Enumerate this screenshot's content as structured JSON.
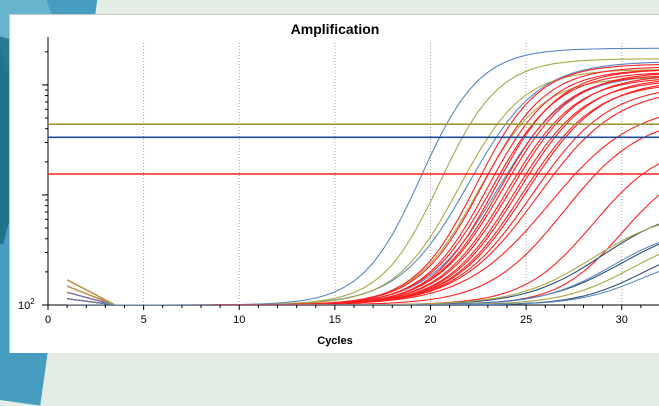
{
  "chart_data": {
    "type": "line",
    "title": "Amplification",
    "xlabel": "Cycles",
    "ylabel": "",
    "xlim": [
      0,
      32
    ],
    "x_ticks": [
      0,
      5,
      10,
      15,
      20,
      25,
      30
    ],
    "y_scale": "log",
    "y_tick_label": {
      "base": "10",
      "exp": "2",
      "value": 100
    },
    "grid": "vertical-dotted",
    "thresholds": [
      {
        "color": "#9a9a3a",
        "level": 0.69
      },
      {
        "color": "#1f4e9a",
        "level": 0.64
      },
      {
        "color": "#ff2020",
        "level": 0.5
      }
    ],
    "series": [
      {
        "color": "#5b86c6",
        "midpoint": 19.5,
        "plateau": 0.98,
        "k": 0.65
      },
      {
        "color": "#5b86c6",
        "midpoint": 22.0,
        "plateau": 0.93,
        "k": 0.55
      },
      {
        "color": "#5b86c6",
        "midpoint": 23.5,
        "plateau": 0.88,
        "k": 0.55
      },
      {
        "color": "#a8a84a",
        "midpoint": 20.5,
        "plateau": 0.94,
        "k": 0.65
      },
      {
        "color": "#a8a84a",
        "midpoint": 21.5,
        "plateau": 0.9,
        "k": 0.6
      },
      {
        "color": "#a8a84a",
        "midpoint": 22.5,
        "plateau": 0.87,
        "k": 0.6
      },
      {
        "color": "#ff2020",
        "midpoint": 22.4,
        "plateau": 0.92,
        "k": 0.62
      },
      {
        "color": "#ff2020",
        "midpoint": 22.7,
        "plateau": 0.91,
        "k": 0.6
      },
      {
        "color": "#ff2020",
        "midpoint": 23.0,
        "plateau": 0.9,
        "k": 0.6
      },
      {
        "color": "#ff2020",
        "midpoint": 23.2,
        "plateau": 0.89,
        "k": 0.58
      },
      {
        "color": "#ff2020",
        "midpoint": 23.4,
        "plateau": 0.9,
        "k": 0.6
      },
      {
        "color": "#ff2020",
        "midpoint": 23.6,
        "plateau": 0.88,
        "k": 0.58
      },
      {
        "color": "#ff2020",
        "midpoint": 23.8,
        "plateau": 0.89,
        "k": 0.56
      },
      {
        "color": "#ff2020",
        "midpoint": 24.0,
        "plateau": 0.87,
        "k": 0.56
      },
      {
        "color": "#ff2020",
        "midpoint": 24.2,
        "plateau": 0.88,
        "k": 0.55
      },
      {
        "color": "#ff2020",
        "midpoint": 24.4,
        "plateau": 0.86,
        "k": 0.55
      },
      {
        "color": "#ff2020",
        "midpoint": 24.6,
        "plateau": 0.87,
        "k": 0.54
      },
      {
        "color": "#ff2020",
        "midpoint": 24.8,
        "plateau": 0.85,
        "k": 0.53
      },
      {
        "color": "#ff2020",
        "midpoint": 25.0,
        "plateau": 0.86,
        "k": 0.52
      },
      {
        "color": "#ff2020",
        "midpoint": 25.3,
        "plateau": 0.84,
        "k": 0.5
      },
      {
        "color": "#ff2020",
        "midpoint": 25.6,
        "plateau": 0.83,
        "k": 0.48
      },
      {
        "color": "#ff2020",
        "midpoint": 26.2,
        "plateau": 0.77,
        "k": 0.45
      },
      {
        "color": "#ff2020",
        "midpoint": 27.0,
        "plateau": 0.72,
        "k": 0.5
      },
      {
        "color": "#ff2020",
        "midpoint": 28.5,
        "plateau": 0.62,
        "k": 0.55
      },
      {
        "color": "#ff2020",
        "midpoint": 30.0,
        "plateau": 0.55,
        "k": 0.6
      },
      {
        "color": "#2e4f7a",
        "midpoint": 29.0,
        "plateau": 0.38,
        "k": 0.5
      },
      {
        "color": "#2e4f7a",
        "midpoint": 30.0,
        "plateau": 0.32,
        "k": 0.5
      },
      {
        "color": "#5b86c6",
        "midpoint": 29.5,
        "plateau": 0.3,
        "k": 0.55
      },
      {
        "color": "#a8a84a",
        "midpoint": 28.5,
        "plateau": 0.36,
        "k": 0.5
      },
      {
        "color": "#a8a84a",
        "midpoint": 30.5,
        "plateau": 0.28,
        "k": 0.55
      },
      {
        "color": "#2e4f7a",
        "midpoint": 31.0,
        "plateau": 0.24,
        "k": 0.6
      },
      {
        "color": "#5b86c6",
        "midpoint": 31.0,
        "plateau": 0.2,
        "k": 0.6
      }
    ]
  }
}
